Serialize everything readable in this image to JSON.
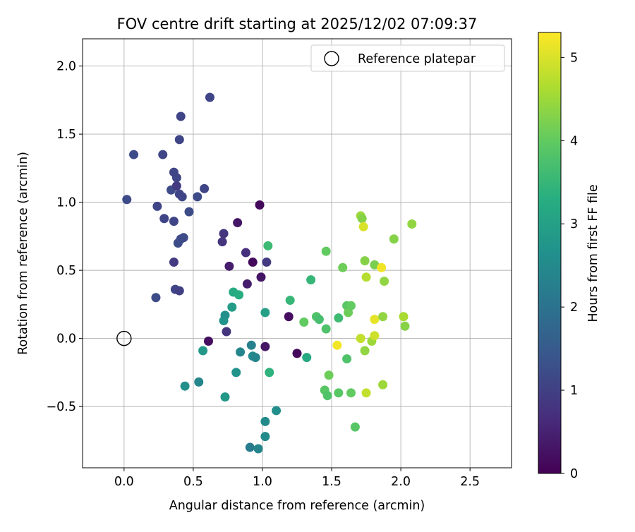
{
  "chart_data": {
    "type": "scatter",
    "title": "FOV centre drift starting at 2025/12/02 07:09:37",
    "xlabel": "Angular distance from reference (arcmin)",
    "ylabel": "Rotation from reference (arcmin)",
    "xlim": [
      -0.3,
      2.8
    ],
    "ylim": [
      -0.95,
      2.2
    ],
    "xticks": [
      0.0,
      0.5,
      1.0,
      1.5,
      2.0,
      2.5
    ],
    "xtick_labels": [
      "0.0",
      "0.5",
      "1.0",
      "1.5",
      "2.0",
      "2.5"
    ],
    "yticks": [
      -0.5,
      0.0,
      0.5,
      1.0,
      1.5,
      2.0
    ],
    "ytick_labels": [
      "−0.5",
      "0.0",
      "0.5",
      "1.0",
      "1.5",
      "2.0"
    ],
    "grid": true,
    "legend": {
      "position": "top-right",
      "entries": [
        {
          "label": "Reference platepar",
          "marker": "open-circle"
        }
      ]
    },
    "reference_point": {
      "x": 0.0,
      "y": 0.0
    },
    "colorbar": {
      "label": "Hours from first FF file",
      "range": [
        0,
        5.3
      ],
      "ticks": [
        0,
        1,
        2,
        3,
        4,
        5
      ],
      "tick_labels": [
        "0",
        "1",
        "2",
        "3",
        "4",
        "5"
      ],
      "colormap": "viridis",
      "colormap_stops": [
        "#440154",
        "#472d7b",
        "#3b528b",
        "#2c728e",
        "#21918c",
        "#28ae80",
        "#5ec962",
        "#addc30",
        "#fde725"
      ]
    },
    "series": [
      {
        "name": "FOV centre",
        "points": [
          {
            "x": 0.62,
            "y": 1.77,
            "t": 1.1
          },
          {
            "x": 0.41,
            "y": 1.63,
            "t": 1.1
          },
          {
            "x": 0.4,
            "y": 1.46,
            "t": 1.1
          },
          {
            "x": 0.07,
            "y": 1.35,
            "t": 1.2
          },
          {
            "x": 0.28,
            "y": 1.35,
            "t": 1.1
          },
          {
            "x": 0.36,
            "y": 1.22,
            "t": 1.1
          },
          {
            "x": 0.38,
            "y": 1.18,
            "t": 1.1
          },
          {
            "x": 0.58,
            "y": 1.1,
            "t": 1.1
          },
          {
            "x": 0.34,
            "y": 1.09,
            "t": 1.2
          },
          {
            "x": 0.38,
            "y": 1.12,
            "t": 0.9
          },
          {
            "x": 0.4,
            "y": 1.06,
            "t": 1.1
          },
          {
            "x": 0.42,
            "y": 1.04,
            "t": 1.1
          },
          {
            "x": 0.53,
            "y": 1.04,
            "t": 1.2
          },
          {
            "x": 0.02,
            "y": 1.02,
            "t": 1.2
          },
          {
            "x": 0.24,
            "y": 0.97,
            "t": 1.1
          },
          {
            "x": 0.47,
            "y": 0.93,
            "t": 1.2
          },
          {
            "x": 0.29,
            "y": 0.88,
            "t": 1.1
          },
          {
            "x": 0.36,
            "y": 0.86,
            "t": 1.1
          },
          {
            "x": 0.43,
            "y": 0.74,
            "t": 1.2
          },
          {
            "x": 0.41,
            "y": 0.73,
            "t": 1.2
          },
          {
            "x": 0.39,
            "y": 0.7,
            "t": 1.2
          },
          {
            "x": 0.36,
            "y": 0.56,
            "t": 0.9
          },
          {
            "x": 0.37,
            "y": 0.36,
            "t": 1.1
          },
          {
            "x": 0.4,
            "y": 0.35,
            "t": 1.0
          },
          {
            "x": 0.23,
            "y": 0.3,
            "t": 1.2
          },
          {
            "x": 0.72,
            "y": 0.77,
            "t": 0.8
          },
          {
            "x": 0.71,
            "y": 0.71,
            "t": 0.8
          },
          {
            "x": 0.82,
            "y": 0.85,
            "t": 0.3
          },
          {
            "x": 0.98,
            "y": 0.98,
            "t": 0.1
          },
          {
            "x": 0.88,
            "y": 0.63,
            "t": 0.7
          },
          {
            "x": 0.76,
            "y": 0.53,
            "t": 0.4
          },
          {
            "x": 0.93,
            "y": 0.56,
            "t": 0.1
          },
          {
            "x": 1.03,
            "y": 0.56,
            "t": 0.9
          },
          {
            "x": 0.89,
            "y": 0.4,
            "t": 0.4
          },
          {
            "x": 0.99,
            "y": 0.45,
            "t": 0.3
          },
          {
            "x": 1.19,
            "y": 0.16,
            "t": 0.2
          },
          {
            "x": 0.74,
            "y": 0.05,
            "t": 0.8
          },
          {
            "x": 0.61,
            "y": -0.02,
            "t": 0.2
          },
          {
            "x": 1.02,
            "y": -0.06,
            "t": 0.3
          },
          {
            "x": 1.25,
            "y": -0.11,
            "t": 0.1
          },
          {
            "x": 0.79,
            "y": 0.34,
            "t": 3.2
          },
          {
            "x": 0.83,
            "y": 0.32,
            "t": 3.3
          },
          {
            "x": 0.78,
            "y": 0.23,
            "t": 2.9
          },
          {
            "x": 0.73,
            "y": 0.17,
            "t": 2.6
          },
          {
            "x": 0.72,
            "y": 0.13,
            "t": 2.7
          },
          {
            "x": 1.02,
            "y": 0.19,
            "t": 3.0
          },
          {
            "x": 1.04,
            "y": 0.68,
            "t": 3.6
          },
          {
            "x": 0.57,
            "y": -0.09,
            "t": 2.8
          },
          {
            "x": 0.84,
            "y": -0.1,
            "t": 2.4
          },
          {
            "x": 0.92,
            "y": -0.05,
            "t": 2.3
          },
          {
            "x": 0.93,
            "y": -0.13,
            "t": 2.5
          },
          {
            "x": 0.95,
            "y": -0.14,
            "t": 2.4
          },
          {
            "x": 0.81,
            "y": -0.25,
            "t": 2.7
          },
          {
            "x": 1.05,
            "y": -0.25,
            "t": 3.4
          },
          {
            "x": 0.44,
            "y": -0.35,
            "t": 2.6
          },
          {
            "x": 0.54,
            "y": -0.32,
            "t": 2.4
          },
          {
            "x": 0.73,
            "y": -0.43,
            "t": 2.8
          },
          {
            "x": 1.1,
            "y": -0.53,
            "t": 2.6
          },
          {
            "x": 1.02,
            "y": -0.61,
            "t": 2.5
          },
          {
            "x": 1.02,
            "y": -0.72,
            "t": 2.5
          },
          {
            "x": 0.91,
            "y": -0.8,
            "t": 2.2
          },
          {
            "x": 0.97,
            "y": -0.81,
            "t": 2.4
          },
          {
            "x": 1.2,
            "y": 0.28,
            "t": 3.5
          },
          {
            "x": 1.35,
            "y": 0.43,
            "t": 3.5
          },
          {
            "x": 1.32,
            "y": -0.14,
            "t": 3.2
          },
          {
            "x": 1.3,
            "y": 0.12,
            "t": 4.0
          },
          {
            "x": 1.39,
            "y": 0.16,
            "t": 3.8
          },
          {
            "x": 1.41,
            "y": 0.14,
            "t": 3.7
          },
          {
            "x": 1.46,
            "y": 0.07,
            "t": 3.8
          },
          {
            "x": 1.46,
            "y": 0.64,
            "t": 4.0
          },
          {
            "x": 1.48,
            "y": -0.27,
            "t": 4.1
          },
          {
            "x": 1.45,
            "y": -0.38,
            "t": 3.9
          },
          {
            "x": 1.47,
            "y": -0.42,
            "t": 3.8
          },
          {
            "x": 1.55,
            "y": -0.4,
            "t": 3.9
          },
          {
            "x": 1.55,
            "y": 0.15,
            "t": 3.6
          },
          {
            "x": 1.58,
            "y": 0.52,
            "t": 4.1
          },
          {
            "x": 1.61,
            "y": -0.15,
            "t": 3.8
          },
          {
            "x": 1.61,
            "y": 0.24,
            "t": 3.9
          },
          {
            "x": 1.62,
            "y": 0.19,
            "t": 4.1
          },
          {
            "x": 1.64,
            "y": 0.24,
            "t": 4.0
          },
          {
            "x": 1.64,
            "y": -0.4,
            "t": 4.0
          },
          {
            "x": 1.67,
            "y": -0.65,
            "t": 3.9
          },
          {
            "x": 1.71,
            "y": 0.9,
            "t": 4.5
          },
          {
            "x": 1.72,
            "y": 0.88,
            "t": 4.3
          },
          {
            "x": 1.73,
            "y": 0.82,
            "t": 5.0
          },
          {
            "x": 1.74,
            "y": 0.57,
            "t": 4.3
          },
          {
            "x": 1.75,
            "y": 0.45,
            "t": 4.7
          },
          {
            "x": 1.74,
            "y": -0.09,
            "t": 4.4
          },
          {
            "x": 1.75,
            "y": -0.4,
            "t": 4.8
          },
          {
            "x": 1.71,
            "y": 0.0,
            "t": 4.8
          },
          {
            "x": 1.54,
            "y": -0.05,
            "t": 5.2
          },
          {
            "x": 1.81,
            "y": 0.54,
            "t": 4.2
          },
          {
            "x": 1.86,
            "y": 0.52,
            "t": 5.2
          },
          {
            "x": 1.88,
            "y": 0.42,
            "t": 4.4
          },
          {
            "x": 1.79,
            "y": -0.02,
            "t": 4.5
          },
          {
            "x": 1.81,
            "y": 0.02,
            "t": 4.9
          },
          {
            "x": 1.81,
            "y": 0.14,
            "t": 5.1
          },
          {
            "x": 1.87,
            "y": 0.16,
            "t": 4.4
          },
          {
            "x": 1.87,
            "y": -0.34,
            "t": 4.5
          },
          {
            "x": 1.95,
            "y": 0.73,
            "t": 4.3
          },
          {
            "x": 2.02,
            "y": 0.16,
            "t": 4.6
          },
          {
            "x": 2.03,
            "y": 0.09,
            "t": 4.3
          },
          {
            "x": 2.08,
            "y": 0.84,
            "t": 4.4
          }
        ]
      }
    ]
  }
}
